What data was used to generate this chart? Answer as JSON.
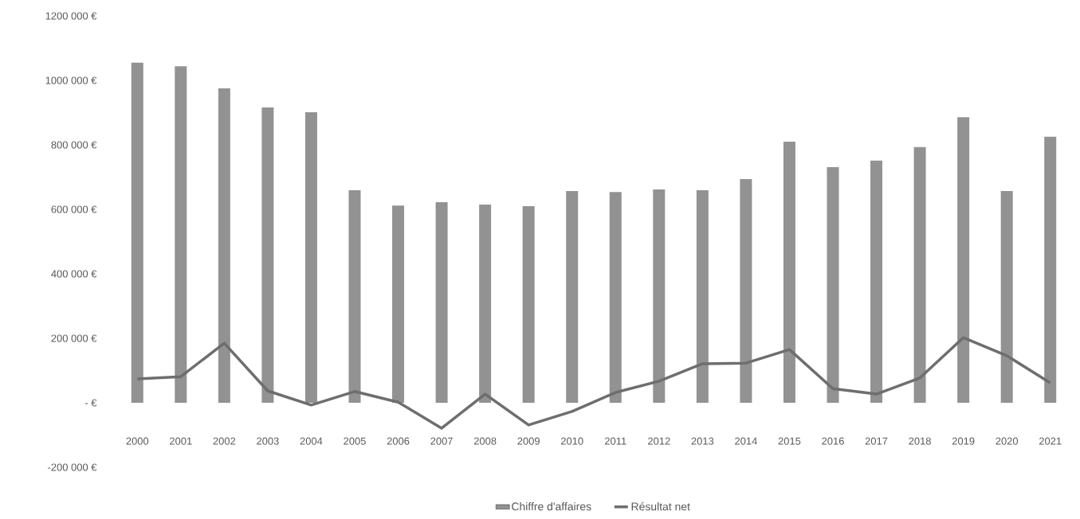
{
  "chart_data": {
    "type": "bar",
    "categories": [
      "2000",
      "2001",
      "2002",
      "2003",
      "2004",
      "2005",
      "2006",
      "2007",
      "2008",
      "2009",
      "2010",
      "2011",
      "2012",
      "2013",
      "2014",
      "2015",
      "2016",
      "2017",
      "2018",
      "2019",
      "2020",
      "2021"
    ],
    "series": [
      {
        "name": "Chiffre d'affaires",
        "color": "#929292",
        "values": [
          1055000,
          1044000,
          975000,
          916000,
          901000,
          659000,
          612000,
          622000,
          615000,
          610000,
          657000,
          654000,
          662000,
          659000,
          694000,
          810000,
          731000,
          751000,
          793000,
          886000,
          657000,
          825000
        ]
      },
      {
        "name": "Résultat net",
        "type": "line",
        "color": "#6e6e6e",
        "values": [
          74000,
          81000,
          185000,
          37000,
          -7000,
          35000,
          2000,
          -79000,
          27000,
          -69000,
          -27000,
          32000,
          67000,
          121000,
          123000,
          165000,
          44000,
          27000,
          77000,
          202000,
          146000,
          62000
        ]
      }
    ],
    "ylim": [
      -200000,
      1200000
    ],
    "yticks": [
      {
        "value": -200000,
        "label": "-200 000 €"
      },
      {
        "value": 0,
        "label": "-   €"
      },
      {
        "value": 200000,
        "label": "200 000 €"
      },
      {
        "value": 400000,
        "label": "400 000 €"
      },
      {
        "value": 600000,
        "label": "600 000 €"
      },
      {
        "value": 800000,
        "label": "800 000 €"
      },
      {
        "value": 1000000,
        "label": "1000 000 €"
      },
      {
        "value": 1200000,
        "label": "1200 000 €"
      }
    ],
    "grid": false,
    "legend": "bottom"
  }
}
